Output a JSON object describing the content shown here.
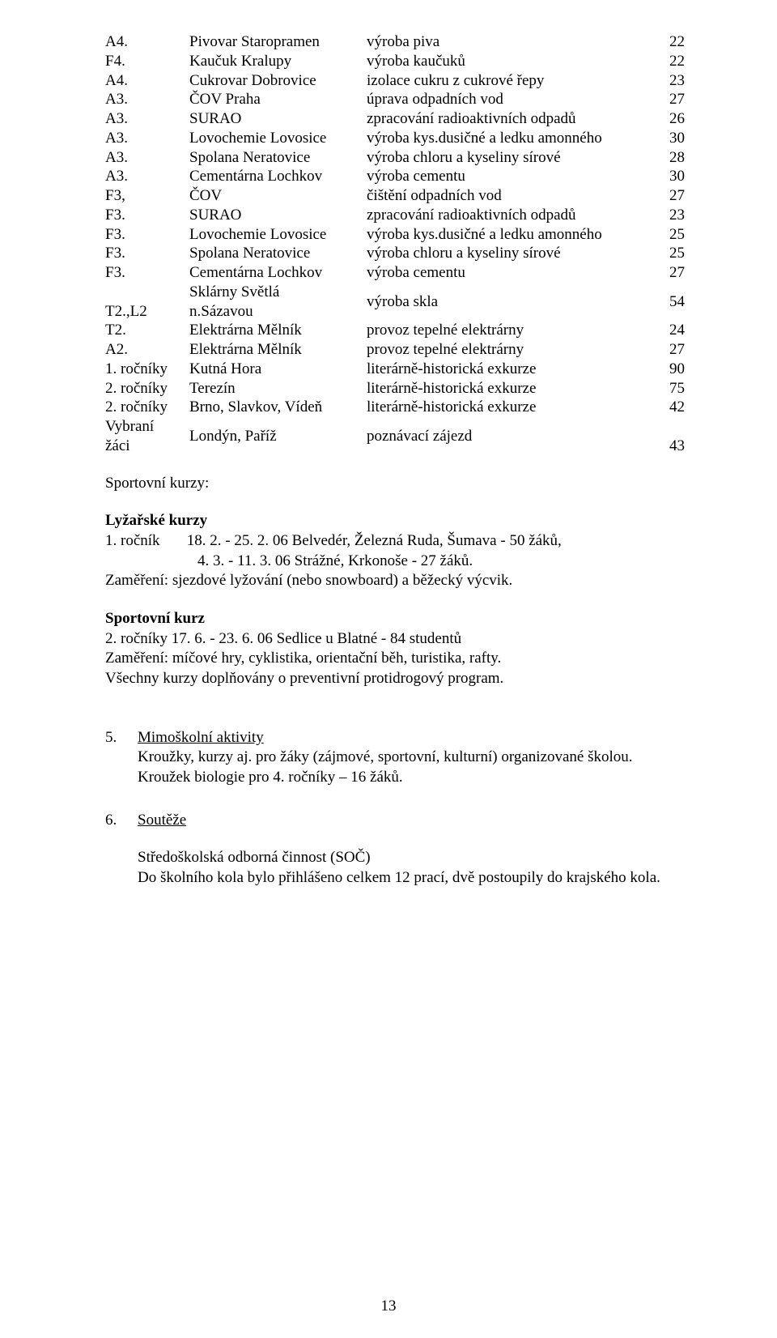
{
  "excursions": [
    {
      "code": "A4.",
      "place": "Pivovar Staropramen",
      "desc": "výroba piva",
      "n": "22"
    },
    {
      "code": "F4.",
      "place": "Kaučuk Kralupy",
      "desc": "výroba  kaučuků",
      "n": "22"
    },
    {
      "code": "A4.",
      "place": "Cukrovar Dobrovice",
      "desc": "izolace cukru z cukrové řepy",
      "n": "23"
    },
    {
      "code": "A3.",
      "place": "ČOV Praha",
      "desc": "úprava odpadních vod",
      "n": "27"
    },
    {
      "code": "A3.",
      "place": "SURAO",
      "desc": "zpracování radioaktivních odpadů",
      "n": "26"
    },
    {
      "code": "A3.",
      "place": "Lovochemie Lovosice",
      "desc": "výroba kys.dusičné a ledku amonného",
      "n": "30"
    },
    {
      "code": "A3.",
      "place": "Spolana Neratovice",
      "desc": "výroba chloru a kyseliny sírové",
      "n": "28"
    },
    {
      "code": "A3.",
      "place": "Cementárna Lochkov",
      "desc": "výroba cementu",
      "n": "30"
    },
    {
      "code": "F3,",
      "place": "ČOV",
      "desc": "čištění odpadních vod",
      "n": "27"
    },
    {
      "code": "F3.",
      "place": "SURAO",
      "desc": "zpracování radioaktivních odpadů",
      "n": "23"
    },
    {
      "code": "F3.",
      "place": "Lovochemie Lovosice",
      "desc": "výroba kys.dusičné a ledku amonného",
      "n": "25"
    },
    {
      "code": "F3.",
      "place": "Spolana Neratovice",
      "desc": "výroba chloru a kyseliny sírové",
      "n": "25"
    },
    {
      "code": "F3.",
      "place": "Cementárna Lochkov",
      "desc": "výroba cementu",
      "n": "27"
    },
    {
      "code": "T2.,L2",
      "place": "Sklárny Světlá n.Sázavou",
      "desc": "výroba skla",
      "n": "54",
      "twoLinePlace": [
        "Sklárny Světlá",
        "n.Sázavou"
      ]
    },
    {
      "code": "T2.",
      "place": "Elektrárna Mělník",
      "desc": "provoz tepelné elektrárny",
      "n": "24"
    },
    {
      "code": "A2.",
      "place": "Elektrárna Mělník",
      "desc": "provoz tepelné elektrárny",
      "n": "27"
    },
    {
      "code": "1. ročníky",
      "place": "Kutná Hora",
      "desc": "literárně-historická exkurze",
      "n": "90"
    },
    {
      "code": "2. ročníky",
      "place": "Terezín",
      "desc": "literárně-historická exkurze",
      "n": "75"
    },
    {
      "code": "2. ročníky",
      "place": "Brno, Slavkov, Vídeň",
      "desc": "literárně-historická exkurze",
      "n": "42"
    },
    {
      "code": "Vybraní žáci",
      "place": "Londýn, Paříž",
      "desc": "poznávací zájezd",
      "n": "43",
      "codeTwoLines": [
        "Vybraní",
        "žáci"
      ],
      "nSecondRow": true
    }
  ],
  "sport_heading": "Sportovní kurzy:",
  "ski": {
    "title": "Lyžařské kurzy",
    "line1": "1. ročník       18. 2. - 25. 2. 06 Belvedér, Železná Ruda, Šumava - 50 žáků,",
    "line2": "                        4. 3. - 11. 3. 06 Strážné, Krkonoše - 27 žáků.",
    "line3": "Zaměření: sjezdové lyžování (nebo snowboard) a běžecký výcvik."
  },
  "sportkurz": {
    "title": "Sportovní kurz",
    "line1": "2. ročníky 17. 6. - 23. 6. 06 Sedlice u Blatné - 84 studentů",
    "line2": "Zaměření: míčové hry, cyklistika, orientační běh, turistika, rafty.",
    "line3": "Všechny kurzy doplňovány o preventivní protidrogový program."
  },
  "item5": {
    "num": "5.",
    "title": "Mimoškolní aktivity",
    "line1": "Kroužky, kurzy aj. pro žáky (zájmové, sportovní, kulturní) organizované školou.",
    "line2": "Kroužek biologie pro 4. ročníky – 16 žáků."
  },
  "item6": {
    "num": "6.",
    "title": "Soutěže",
    "para1": "Středoškolská odborná činnost (SOČ)",
    "para2": "Do školního kola bylo přihlášeno celkem 12 prací, dvě postoupily do krajského kola."
  },
  "page_number": "13"
}
